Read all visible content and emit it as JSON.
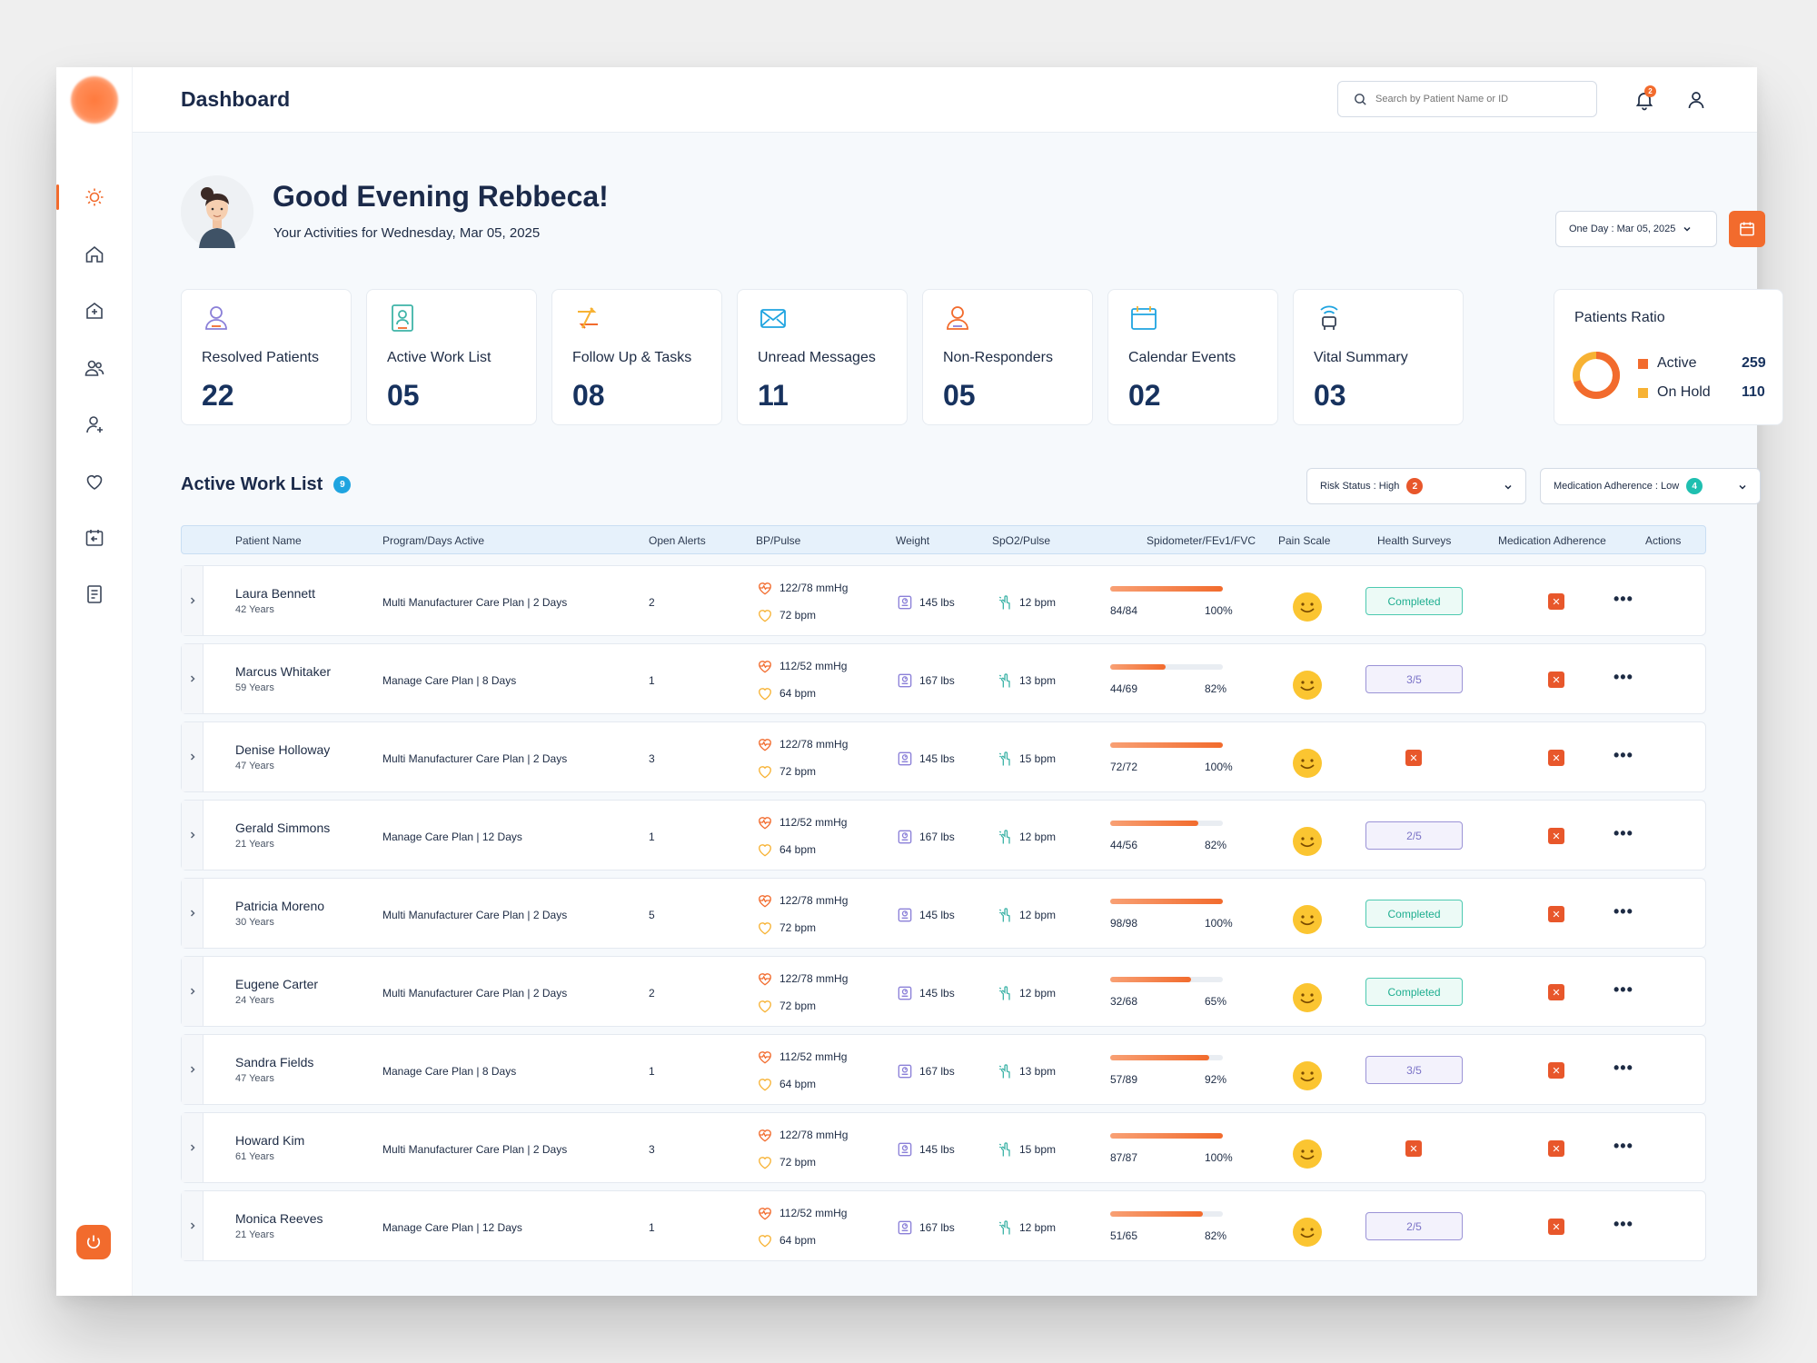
{
  "header": {
    "title": "Dashboard",
    "search_placeholder": "Search by Patient Name or ID",
    "notifications_count": "2"
  },
  "greeting": {
    "title": "Good Evening Rebbeca!",
    "subtitle": "Your Activities for Wednesday, Mar 05, 2025",
    "date_filter": "One Day : Mar 05, 2025"
  },
  "sidebar": {
    "items": [
      {
        "icon": "sun-icon",
        "active": true
      },
      {
        "icon": "home-icon"
      },
      {
        "icon": "medical-house-icon"
      },
      {
        "icon": "users-icon"
      },
      {
        "icon": "user-add-icon"
      },
      {
        "icon": "heart-icon"
      },
      {
        "icon": "calendar-import-icon"
      },
      {
        "icon": "document-icon"
      }
    ],
    "logout_icon": "power-icon"
  },
  "stats": [
    {
      "label": "Resolved Patients",
      "value": "22",
      "icon": "user-check-icon"
    },
    {
      "label": "Active Work List",
      "value": "05",
      "icon": "clipboard-user-icon"
    },
    {
      "label": "Follow Up & Tasks",
      "value": "08",
      "icon": "arrows-icon"
    },
    {
      "label": "Unread Messages",
      "value": "11",
      "icon": "envelope-icon"
    },
    {
      "label": "Non-Responders",
      "value": "05",
      "icon": "user-alert-icon"
    },
    {
      "label": "Calendar Events",
      "value": "02",
      "icon": "calendar-icon"
    },
    {
      "label": "Vital Summary",
      "value": "03",
      "icon": "signal-icon"
    }
  ],
  "patients_ratio": {
    "title": "Patients Ratio",
    "active_label": "Active",
    "active_value": "259",
    "hold_label": "On Hold",
    "hold_value": "110",
    "active_color": "#f26b2d",
    "hold_color": "#f7b233"
  },
  "worklist": {
    "title": "Active Work List",
    "count": "9",
    "risk_filter": "Risk Status : High",
    "risk_count": "2",
    "adherence_filter": "Medication Adherence : Low",
    "adherence_count": "4",
    "columns": [
      "Patient Name",
      "Program/Days Active",
      "Open Alerts",
      "BP/Pulse",
      "Weight",
      "SpO2/Pulse",
      "Spidometer/FEv1/FVC",
      "Pain Scale",
      "Health Surveys",
      "Medication Adherence",
      "Actions"
    ],
    "rows": [
      {
        "name": "Laura Bennett",
        "age": "42 Years",
        "program": "Multi Manufacturer Care Plan | 2 Days",
        "alerts": "2",
        "bp": "122/78 mmHg",
        "pulse": "72 bpm",
        "weight": "145 lbs",
        "spo2": "12 bpm",
        "spiro": "84/84",
        "spiro_pct": "100%",
        "spiro_fill": 1.0,
        "survey": "Completed",
        "survey_type": "completed"
      },
      {
        "name": "Marcus Whitaker",
        "age": "59 Years",
        "program": "Manage Care Plan | 8 Days",
        "alerts": "1",
        "bp": "112/52 mmHg",
        "pulse": "64 bpm",
        "weight": "167 lbs",
        "spo2": "13 bpm",
        "spiro": "44/69",
        "spiro_pct": "82%",
        "spiro_fill": 0.49,
        "survey": "3/5",
        "survey_type": "partial"
      },
      {
        "name": "Denise Holloway",
        "age": "47 Years",
        "program": "Multi Manufacturer Care Plan | 2 Days",
        "alerts": "3",
        "bp": "122/78 mmHg",
        "pulse": "72 bpm",
        "weight": "145 lbs",
        "spo2": "15 bpm",
        "spiro": "72/72",
        "spiro_pct": "100%",
        "spiro_fill": 1.0,
        "survey": "",
        "survey_type": "none"
      },
      {
        "name": "Gerald Simmons",
        "age": "21 Years",
        "program": "Manage Care Plan | 12 Days",
        "alerts": "1",
        "bp": "112/52 mmHg",
        "pulse": "64 bpm",
        "weight": "167 lbs",
        "spo2": "12 bpm",
        "spiro": "44/56",
        "spiro_pct": "82%",
        "spiro_fill": 0.78,
        "survey": "2/5",
        "survey_type": "partial"
      },
      {
        "name": "Patricia Moreno",
        "age": "30 Years",
        "program": "Multi Manufacturer Care Plan | 2 Days",
        "alerts": "5",
        "bp": "122/78 mmHg",
        "pulse": "72 bpm",
        "weight": "145 lbs",
        "spo2": "12 bpm",
        "spiro": "98/98",
        "spiro_pct": "100%",
        "spiro_fill": 1.0,
        "survey": "Completed",
        "survey_type": "completed"
      },
      {
        "name": "Eugene Carter",
        "age": "24 Years",
        "program": "Multi Manufacturer Care Plan | 2 Days",
        "alerts": "2",
        "bp": "122/78 mmHg",
        "pulse": "72 bpm",
        "weight": "145 lbs",
        "spo2": "12 bpm",
        "spiro": "32/68",
        "spiro_pct": "65%",
        "spiro_fill": 0.72,
        "survey": "Completed",
        "survey_type": "completed"
      },
      {
        "name": "Sandra Fields",
        "age": "47 Years",
        "program": "Manage Care Plan | 8 Days",
        "alerts": "1",
        "bp": "112/52 mmHg",
        "pulse": "64 bpm",
        "weight": "167 lbs",
        "spo2": "13 bpm",
        "spiro": "57/89",
        "spiro_pct": "92%",
        "spiro_fill": 0.88,
        "survey": "3/5",
        "survey_type": "partial"
      },
      {
        "name": "Howard Kim",
        "age": "61 Years",
        "program": "Multi Manufacturer Care Plan | 2 Days",
        "alerts": "3",
        "bp": "122/78 mmHg",
        "pulse": "72 bpm",
        "weight": "145 lbs",
        "spo2": "15 bpm",
        "spiro": "87/87",
        "spiro_pct": "100%",
        "spiro_fill": 1.0,
        "survey": "",
        "survey_type": "none"
      },
      {
        "name": "Monica Reeves",
        "age": "21 Years",
        "program": "Manage Care Plan | 12 Days",
        "alerts": "1",
        "bp": "112/52 mmHg",
        "pulse": "64 bpm",
        "weight": "167 lbs",
        "spo2": "12 bpm",
        "spiro": "51/65",
        "spiro_pct": "82%",
        "spiro_fill": 0.82,
        "survey": "2/5",
        "survey_type": "partial"
      }
    ]
  }
}
